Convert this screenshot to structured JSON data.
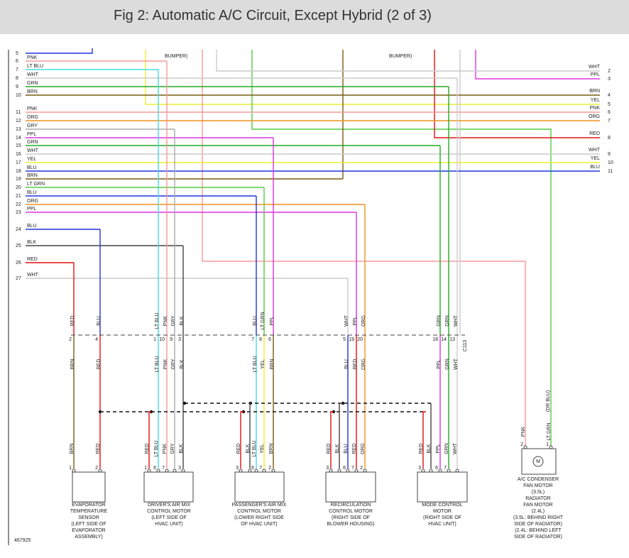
{
  "header": {
    "title": "Fig 2: Automatic A/C Circuit, Except Hybrid (2 of 3)"
  },
  "diagram": {
    "wire_colors": {
      "RED": "#e01010",
      "BLU": "#2233dd",
      "LT BLU": "#44dde0",
      "PNK": "#f59a9a",
      "GRY": "#aaaaaa",
      "BLK": "#444444",
      "LT GRN": "#55cc44",
      "GRN": "#22aa22",
      "PPL": "#dd33dd",
      "ORG": "#f39020",
      "WHT": "#cccccc",
      "YEL": "#eeee33",
      "BRN": "#7a5a10"
    },
    "left_pins": [
      {
        "pin": "5",
        "label": null
      },
      {
        "pin": "6",
        "label": "PNK"
      },
      {
        "pin": "7",
        "label": "LT BLU"
      },
      {
        "pin": "8",
        "label": "WHT"
      },
      {
        "pin": "9",
        "label": "GRN"
      },
      {
        "pin": "10",
        "label": "BRN"
      },
      {
        "pin": "11",
        "label": "PNK"
      },
      {
        "pin": "12",
        "label": "ORG"
      },
      {
        "pin": "13",
        "label": "GRY"
      },
      {
        "pin": "14",
        "label": "PPL"
      },
      {
        "pin": "15",
        "label": "GRN"
      },
      {
        "pin": "16",
        "label": "WHT"
      },
      {
        "pin": "17",
        "label": "YEL"
      },
      {
        "pin": "18",
        "label": "BLU"
      },
      {
        "pin": "19",
        "label": "BRN"
      },
      {
        "pin": "20",
        "label": "LT GRN"
      },
      {
        "pin": "21",
        "label": "BLU"
      },
      {
        "pin": "22",
        "label": "ORG"
      },
      {
        "pin": "23",
        "label": "PPL"
      },
      {
        "pin": "24",
        "label": "BLU"
      },
      {
        "pin": "25",
        "label": "BLK"
      },
      {
        "pin": "26",
        "label": "RED"
      },
      {
        "pin": "27",
        "label": "WHT"
      }
    ],
    "right_pins": [
      {
        "pin": "2",
        "label": "WHT"
      },
      {
        "pin": "3",
        "label": "PPL"
      },
      {
        "pin": "4",
        "label": "BRN"
      },
      {
        "pin": "5",
        "label": "YEL"
      },
      {
        "pin": "6",
        "label": "PNK"
      },
      {
        "pin": "7",
        "label": "ORG"
      },
      {
        "pin": "8",
        "label": "RED"
      },
      {
        "pin": "9",
        "label": "WHT"
      },
      {
        "pin": "10",
        "label": "YEL"
      },
      {
        "pin": "11",
        "label": "BLU"
      }
    ],
    "notes": [
      "BUMPER)",
      "BUMPER)"
    ],
    "connector": "C113",
    "drawing_number": "467925",
    "columns": [
      {
        "top": "RED",
        "pin": "2",
        "mid": "BRN"
      },
      {
        "top": "BLU",
        "pin": "4",
        "mid": "RED"
      },
      {
        "top": "LT BLU",
        "pin": "1",
        "mid": "LT BLU"
      },
      {
        "top": "PNK",
        "pin": "10",
        "mid": "PNK"
      },
      {
        "top": "GRY",
        "pin": "9",
        "mid": "GRY"
      },
      {
        "top": "BLK",
        "pin": "3",
        "mid": "BLK"
      },
      {
        "top": "BLU",
        "pin": "7",
        "mid": "LT BLU"
      },
      {
        "top": "LT GRN",
        "pin": "8",
        "mid": "YEL"
      },
      {
        "top": "PPL",
        "pin": "6",
        "mid": "BRN"
      },
      {
        "top": "WHT",
        "pin": "5",
        "mid": "BLU"
      },
      {
        "top": "PPL",
        "pin": "19",
        "mid": "RED"
      },
      {
        "top": "ORG",
        "pin": "20",
        "mid": "ORG"
      },
      {
        "top": "GRN",
        "pin": "18",
        "mid": "PPL"
      },
      {
        "top": "GRN",
        "pin": "14",
        "mid": "GRN"
      },
      {
        "top": "WHT",
        "pin": "13",
        "mid": "WHT"
      }
    ],
    "components": [
      {
        "label": [
          "EVAPORATOR",
          "TEMPERATURE",
          "SENSOR",
          "(LEFT SIDE OF",
          "EVAPORATOR",
          "ASSEMBLY)"
        ],
        "wires": [
          {
            "color": "BRN",
            "pin": "1"
          },
          {
            "color": "RED",
            "pin": "2"
          }
        ]
      },
      {
        "label": [
          "DRIVER'S AIR MIX",
          "CONTROL MOTOR",
          "(LEFT SIDE OF",
          "HVAC UNIT)"
        ],
        "wires": [
          {
            "color": "RED",
            "pin": "1"
          },
          {
            "color": "LT BLU",
            "pin": "6"
          },
          {
            "color": "PNK",
            "pin": "7"
          },
          {
            "color": "GRY",
            "pin": null
          },
          {
            "color": "BLK",
            "pin": "3"
          }
        ]
      },
      {
        "label": [
          "PASSENGER'S AIR MIX",
          "CONTROL MOTOR",
          "(LOWER RIGHT SIDE",
          "OF HVAC UNIT)"
        ],
        "wires": [
          {
            "color": "RED",
            "pin": "3"
          },
          {
            "color": "BLK",
            "pin": null
          },
          {
            "color": "LT BLU",
            "pin": "6"
          },
          {
            "color": "YEL",
            "pin": "7"
          },
          {
            "color": "BRN",
            "pin": "2"
          }
        ]
      },
      {
        "label": [
          "RECIRCULATION",
          "CONTROL MOTOR",
          "(RIGHT SIDE OF",
          "BLOWER HOUSING)"
        ],
        "wires": [
          {
            "color": "RED",
            "pin": "3"
          },
          {
            "color": "BLK",
            "pin": null
          },
          {
            "color": "BLU",
            "pin": "6"
          },
          {
            "color": "RED",
            "pin": "7"
          },
          {
            "color": "ORG",
            "pin": "2"
          }
        ]
      },
      {
        "label": [
          "MODE CONTROL",
          "MOTOR",
          "(RIGHT SIDE OF",
          "HVAC UNIT)"
        ],
        "wires": [
          {
            "color": "RED",
            "pin": "3"
          },
          {
            "color": "BLK",
            "pin": null
          },
          {
            "color": "PPL",
            "pin": "6"
          },
          {
            "color": "GRN",
            "pin": "7"
          },
          {
            "color": "WHT",
            "pin": null
          }
        ]
      },
      {
        "label": [
          "A/C CONDENSER",
          "FAN MOTOR",
          "(3.5L)",
          "RADIATOR",
          "FAN MOTOR",
          "(2.4L)",
          "(3.5L: BEHIND RIGHT",
          "SIDE OF RADIATOR)",
          "(2.4L: BEHIND LEFT",
          "SIDE OF RADIATOR)"
        ],
        "wires": [
          {
            "color": "PNK",
            "pin": "2"
          },
          {
            "color": "LT GRN",
            "pin": "1"
          }
        ],
        "alt": "(DR BLU)"
      }
    ]
  }
}
